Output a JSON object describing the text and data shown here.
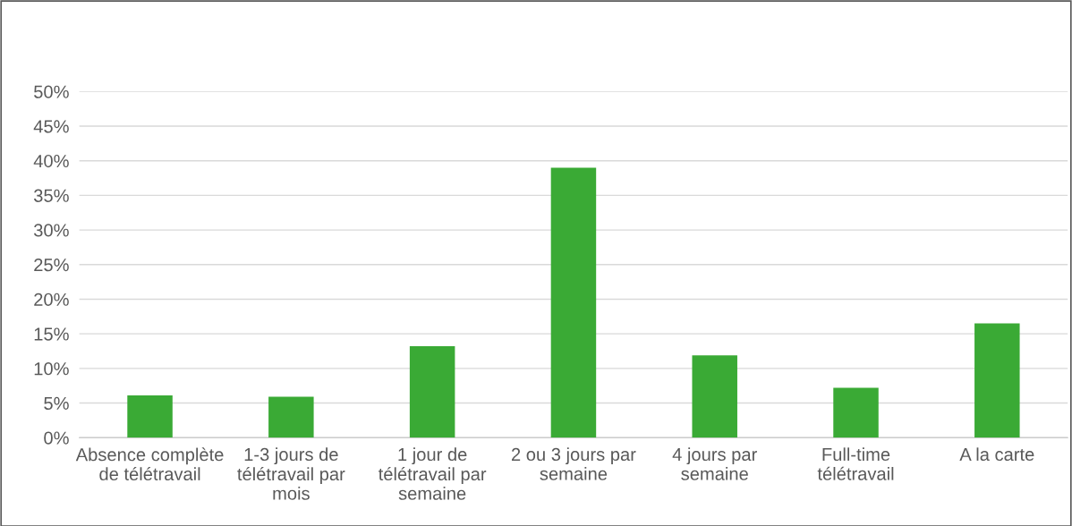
{
  "chart_data": {
    "type": "bar",
    "categories": [
      "Absence complète de télétravail",
      "1-3 jours de télétravail par mois",
      "1 jour de télétravail par semaine",
      "2 ou 3 jours par semaine",
      "4 jours par semaine",
      "Full-time télétravail",
      "A la carte"
    ],
    "values": [
      6.1,
      5.9,
      13.2,
      39.0,
      11.9,
      7.2,
      16.5
    ],
    "color": "#3aaa35",
    "ylim": [
      0,
      50
    ],
    "yticks": [
      {
        "value": 0,
        "label": "0%"
      },
      {
        "value": 5,
        "label": "5%"
      },
      {
        "value": 10,
        "label": "10%"
      },
      {
        "value": 15,
        "label": "15%"
      },
      {
        "value": 20,
        "label": "20%"
      },
      {
        "value": 25,
        "label": "25%"
      },
      {
        "value": 30,
        "label": "30%"
      },
      {
        "value": 35,
        "label": "35%"
      },
      {
        "value": 40,
        "label": "40%"
      },
      {
        "value": 45,
        "label": "45%"
      },
      {
        "value": 50,
        "label": "50%"
      }
    ],
    "grid": "y"
  }
}
